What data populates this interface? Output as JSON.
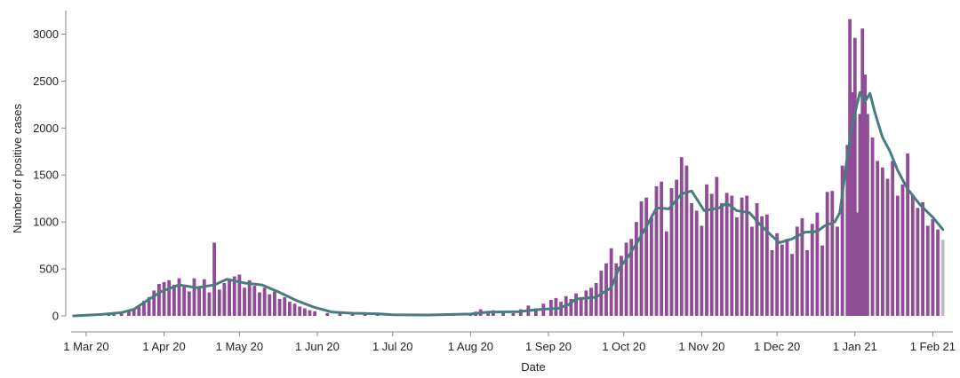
{
  "chart_data": {
    "type": "bar",
    "xlabel": "Date",
    "ylabel": "Number of positive cases",
    "ylim": [
      0,
      3250
    ],
    "yticks": [
      0,
      500,
      1000,
      1500,
      2000,
      2500,
      3000
    ],
    "x_range": [
      "2020-02-24",
      "2021-02-09"
    ],
    "xticks": [
      {
        "date": "2020-03-01",
        "label": "1 Mar 20"
      },
      {
        "date": "2020-04-01",
        "label": "1 Apr 20"
      },
      {
        "date": "2020-05-01",
        "label": "1 May 20"
      },
      {
        "date": "2020-06-01",
        "label": "1 Jun 20"
      },
      {
        "date": "2020-07-01",
        "label": "1 Jul 20"
      },
      {
        "date": "2020-08-01",
        "label": "1 Aug 20"
      },
      {
        "date": "2020-09-01",
        "label": "1 Sep 20"
      },
      {
        "date": "2020-10-01",
        "label": "1 Oct 20"
      },
      {
        "date": "2020-11-01",
        "label": "1 Nov 20"
      },
      {
        "date": "2020-12-01",
        "label": "1 Dec 20"
      },
      {
        "date": "2021-01-01",
        "label": "1 Jan 21"
      },
      {
        "date": "2021-02-01",
        "label": "1 Feb 21"
      }
    ],
    "grid": false,
    "colors": {
      "bars": "#8e4d94",
      "incomplete_bar": "#bbbbbb",
      "line": "#4a7b80",
      "axis": "#888888"
    },
    "incomplete_last_bar": true,
    "series": [
      {
        "type": "bar",
        "points": [
          [
            "2020-02-25",
            5
          ],
          [
            "2020-02-26",
            4
          ],
          [
            "2020-02-27",
            6
          ],
          [
            "2020-02-28",
            8
          ],
          [
            "2020-02-29",
            5
          ],
          [
            "2020-03-01",
            8
          ],
          [
            "2020-03-05",
            12
          ],
          [
            "2020-03-10",
            25
          ],
          [
            "2020-03-12",
            35
          ],
          [
            "2020-03-15",
            30
          ],
          [
            "2020-03-18",
            55
          ],
          [
            "2020-03-20",
            80
          ],
          [
            "2020-03-22",
            110
          ],
          [
            "2020-03-24",
            160
          ],
          [
            "2020-03-26",
            200
          ],
          [
            "2020-03-28",
            270
          ],
          [
            "2020-03-30",
            340
          ],
          [
            "2020-04-01",
            360
          ],
          [
            "2020-04-03",
            380
          ],
          [
            "2020-04-05",
            330
          ],
          [
            "2020-04-07",
            400
          ],
          [
            "2020-04-09",
            310
          ],
          [
            "2020-04-11",
            260
          ],
          [
            "2020-04-13",
            400
          ],
          [
            "2020-04-15",
            300
          ],
          [
            "2020-04-17",
            390
          ],
          [
            "2020-04-19",
            250
          ],
          [
            "2020-04-21",
            780
          ],
          [
            "2020-04-23",
            280
          ],
          [
            "2020-04-25",
            350
          ],
          [
            "2020-04-27",
            390
          ],
          [
            "2020-04-29",
            420
          ],
          [
            "2020-05-01",
            440
          ],
          [
            "2020-05-03",
            300
          ],
          [
            "2020-05-05",
            380
          ],
          [
            "2020-05-07",
            320
          ],
          [
            "2020-05-09",
            250
          ],
          [
            "2020-05-11",
            300
          ],
          [
            "2020-05-13",
            230
          ],
          [
            "2020-05-15",
            260
          ],
          [
            "2020-05-17",
            180
          ],
          [
            "2020-05-19",
            200
          ],
          [
            "2020-05-21",
            150
          ],
          [
            "2020-05-23",
            130
          ],
          [
            "2020-05-25",
            100
          ],
          [
            "2020-05-27",
            80
          ],
          [
            "2020-05-29",
            60
          ],
          [
            "2020-05-31",
            50
          ],
          [
            "2020-06-05",
            30
          ],
          [
            "2020-06-10",
            25
          ],
          [
            "2020-06-15",
            20
          ],
          [
            "2020-06-20",
            18
          ],
          [
            "2020-06-25",
            15
          ],
          [
            "2020-07-01",
            12
          ],
          [
            "2020-07-10",
            10
          ],
          [
            "2020-07-20",
            12
          ],
          [
            "2020-07-25",
            15
          ],
          [
            "2020-08-01",
            25
          ],
          [
            "2020-08-03",
            45
          ],
          [
            "2020-08-05",
            70
          ],
          [
            "2020-08-08",
            40
          ],
          [
            "2020-08-10",
            60
          ],
          [
            "2020-08-14",
            55
          ],
          [
            "2020-08-18",
            30
          ],
          [
            "2020-08-21",
            70
          ],
          [
            "2020-08-24",
            110
          ],
          [
            "2020-08-27",
            80
          ],
          [
            "2020-08-30",
            130
          ],
          [
            "2020-09-02",
            170
          ],
          [
            "2020-09-04",
            190
          ],
          [
            "2020-09-06",
            150
          ],
          [
            "2020-09-08",
            210
          ],
          [
            "2020-09-10",
            180
          ],
          [
            "2020-09-12",
            240
          ],
          [
            "2020-09-14",
            200
          ],
          [
            "2020-09-16",
            270
          ],
          [
            "2020-09-18",
            300
          ],
          [
            "2020-09-20",
            350
          ],
          [
            "2020-09-22",
            480
          ],
          [
            "2020-09-24",
            560
          ],
          [
            "2020-09-26",
            720
          ],
          [
            "2020-09-28",
            560
          ],
          [
            "2020-09-30",
            640
          ],
          [
            "2020-10-02",
            780
          ],
          [
            "2020-10-04",
            820
          ],
          [
            "2020-10-06",
            1000
          ],
          [
            "2020-10-08",
            1220
          ],
          [
            "2020-10-10",
            1260
          ],
          [
            "2020-10-12",
            1050
          ],
          [
            "2020-10-14",
            1380
          ],
          [
            "2020-10-16",
            1430
          ],
          [
            "2020-10-18",
            900
          ],
          [
            "2020-10-20",
            1360
          ],
          [
            "2020-10-22",
            1450
          ],
          [
            "2020-10-24",
            1690
          ],
          [
            "2020-10-26",
            1600
          ],
          [
            "2020-10-28",
            1200
          ],
          [
            "2020-10-30",
            1120
          ],
          [
            "2020-11-01",
            960
          ],
          [
            "2020-11-03",
            1400
          ],
          [
            "2020-11-05",
            1300
          ],
          [
            "2020-11-07",
            1480
          ],
          [
            "2020-11-09",
            1200
          ],
          [
            "2020-11-11",
            1310
          ],
          [
            "2020-11-13",
            1280
          ],
          [
            "2020-11-15",
            1050
          ],
          [
            "2020-11-17",
            1260
          ],
          [
            "2020-11-19",
            1280
          ],
          [
            "2020-11-21",
            950
          ],
          [
            "2020-11-23",
            1200
          ],
          [
            "2020-11-25",
            1060
          ],
          [
            "2020-11-27",
            1080
          ],
          [
            "2020-11-29",
            700
          ],
          [
            "2020-12-01",
            880
          ],
          [
            "2020-12-03",
            760
          ],
          [
            "2020-12-05",
            820
          ],
          [
            "2020-12-07",
            660
          ],
          [
            "2020-12-09",
            950
          ],
          [
            "2020-12-11",
            1040
          ],
          [
            "2020-12-13",
            700
          ],
          [
            "2020-12-15",
            980
          ],
          [
            "2020-12-17",
            1100
          ],
          [
            "2020-12-19",
            750
          ],
          [
            "2020-12-21",
            1320
          ],
          [
            "2020-12-23",
            1330
          ],
          [
            "2020-12-25",
            950
          ],
          [
            "2020-12-27",
            1600
          ],
          [
            "2020-12-29",
            1820
          ],
          [
            "2020-12-30",
            3160
          ],
          [
            "2020-12-31",
            2380
          ],
          [
            "2021-01-01",
            2960
          ],
          [
            "2021-01-02",
            1100
          ],
          [
            "2021-01-03",
            2150
          ],
          [
            "2021-01-04",
            3060
          ],
          [
            "2021-01-05",
            2570
          ],
          [
            "2021-01-06",
            2150
          ],
          [
            "2021-01-08",
            1900
          ],
          [
            "2021-01-10",
            1650
          ],
          [
            "2021-01-12",
            1580
          ],
          [
            "2021-01-14",
            1460
          ],
          [
            "2021-01-16",
            1650
          ],
          [
            "2021-01-18",
            1280
          ],
          [
            "2021-01-20",
            1400
          ],
          [
            "2021-01-22",
            1730
          ],
          [
            "2021-01-24",
            1290
          ],
          [
            "2021-01-26",
            1150
          ],
          [
            "2021-01-28",
            1210
          ],
          [
            "2021-01-30",
            960
          ],
          [
            "2021-02-01",
            1030
          ],
          [
            "2021-02-03",
            920
          ],
          [
            "2021-02-05",
            810
          ]
        ]
      },
      {
        "type": "line",
        "points": [
          [
            "2020-02-25",
            0
          ],
          [
            "2020-03-07",
            15
          ],
          [
            "2020-03-15",
            35
          ],
          [
            "2020-03-20",
            70
          ],
          [
            "2020-03-25",
            160
          ],
          [
            "2020-03-31",
            260
          ],
          [
            "2020-04-07",
            330
          ],
          [
            "2020-04-14",
            300
          ],
          [
            "2020-04-21",
            330
          ],
          [
            "2020-04-26",
            390
          ],
          [
            "2020-05-03",
            350
          ],
          [
            "2020-05-10",
            330
          ],
          [
            "2020-05-17",
            250
          ],
          [
            "2020-05-24",
            160
          ],
          [
            "2020-05-31",
            90
          ],
          [
            "2020-06-07",
            40
          ],
          [
            "2020-06-15",
            28
          ],
          [
            "2020-06-25",
            22
          ],
          [
            "2020-07-01",
            12
          ],
          [
            "2020-07-15",
            10
          ],
          [
            "2020-08-01",
            20
          ],
          [
            "2020-08-08",
            40
          ],
          [
            "2020-08-20",
            45
          ],
          [
            "2020-08-29",
            70
          ],
          [
            "2020-09-05",
            80
          ],
          [
            "2020-09-09",
            120
          ],
          [
            "2020-09-12",
            180
          ],
          [
            "2020-09-20",
            200
          ],
          [
            "2020-09-26",
            300
          ],
          [
            "2020-09-29",
            500
          ],
          [
            "2020-10-03",
            640
          ],
          [
            "2020-10-07",
            810
          ],
          [
            "2020-10-11",
            1000
          ],
          [
            "2020-10-14",
            1150
          ],
          [
            "2020-10-19",
            1140
          ],
          [
            "2020-10-24",
            1300
          ],
          [
            "2020-10-28",
            1330
          ],
          [
            "2020-11-02",
            1120
          ],
          [
            "2020-11-08",
            1150
          ],
          [
            "2020-11-11",
            1200
          ],
          [
            "2020-11-15",
            1120
          ],
          [
            "2020-11-20",
            1100
          ],
          [
            "2020-11-24",
            980
          ],
          [
            "2020-11-29",
            850
          ],
          [
            "2020-12-02",
            780
          ],
          [
            "2020-12-07",
            820
          ],
          [
            "2020-12-12",
            890
          ],
          [
            "2020-12-17",
            900
          ],
          [
            "2020-12-20",
            960
          ],
          [
            "2020-12-24",
            1000
          ],
          [
            "2020-12-26",
            1100
          ],
          [
            "2020-12-29",
            1700
          ],
          [
            "2020-12-31",
            2050
          ],
          [
            "2021-01-03",
            2380
          ],
          [
            "2021-01-05",
            2280
          ],
          [
            "2021-01-07",
            2370
          ],
          [
            "2021-01-09",
            2160
          ],
          [
            "2021-01-12",
            1900
          ],
          [
            "2021-01-15",
            1750
          ],
          [
            "2021-01-18",
            1550
          ],
          [
            "2021-01-22",
            1350
          ],
          [
            "2021-01-27",
            1180
          ],
          [
            "2021-02-01",
            1050
          ],
          [
            "2021-02-05",
            920
          ]
        ]
      }
    ]
  }
}
